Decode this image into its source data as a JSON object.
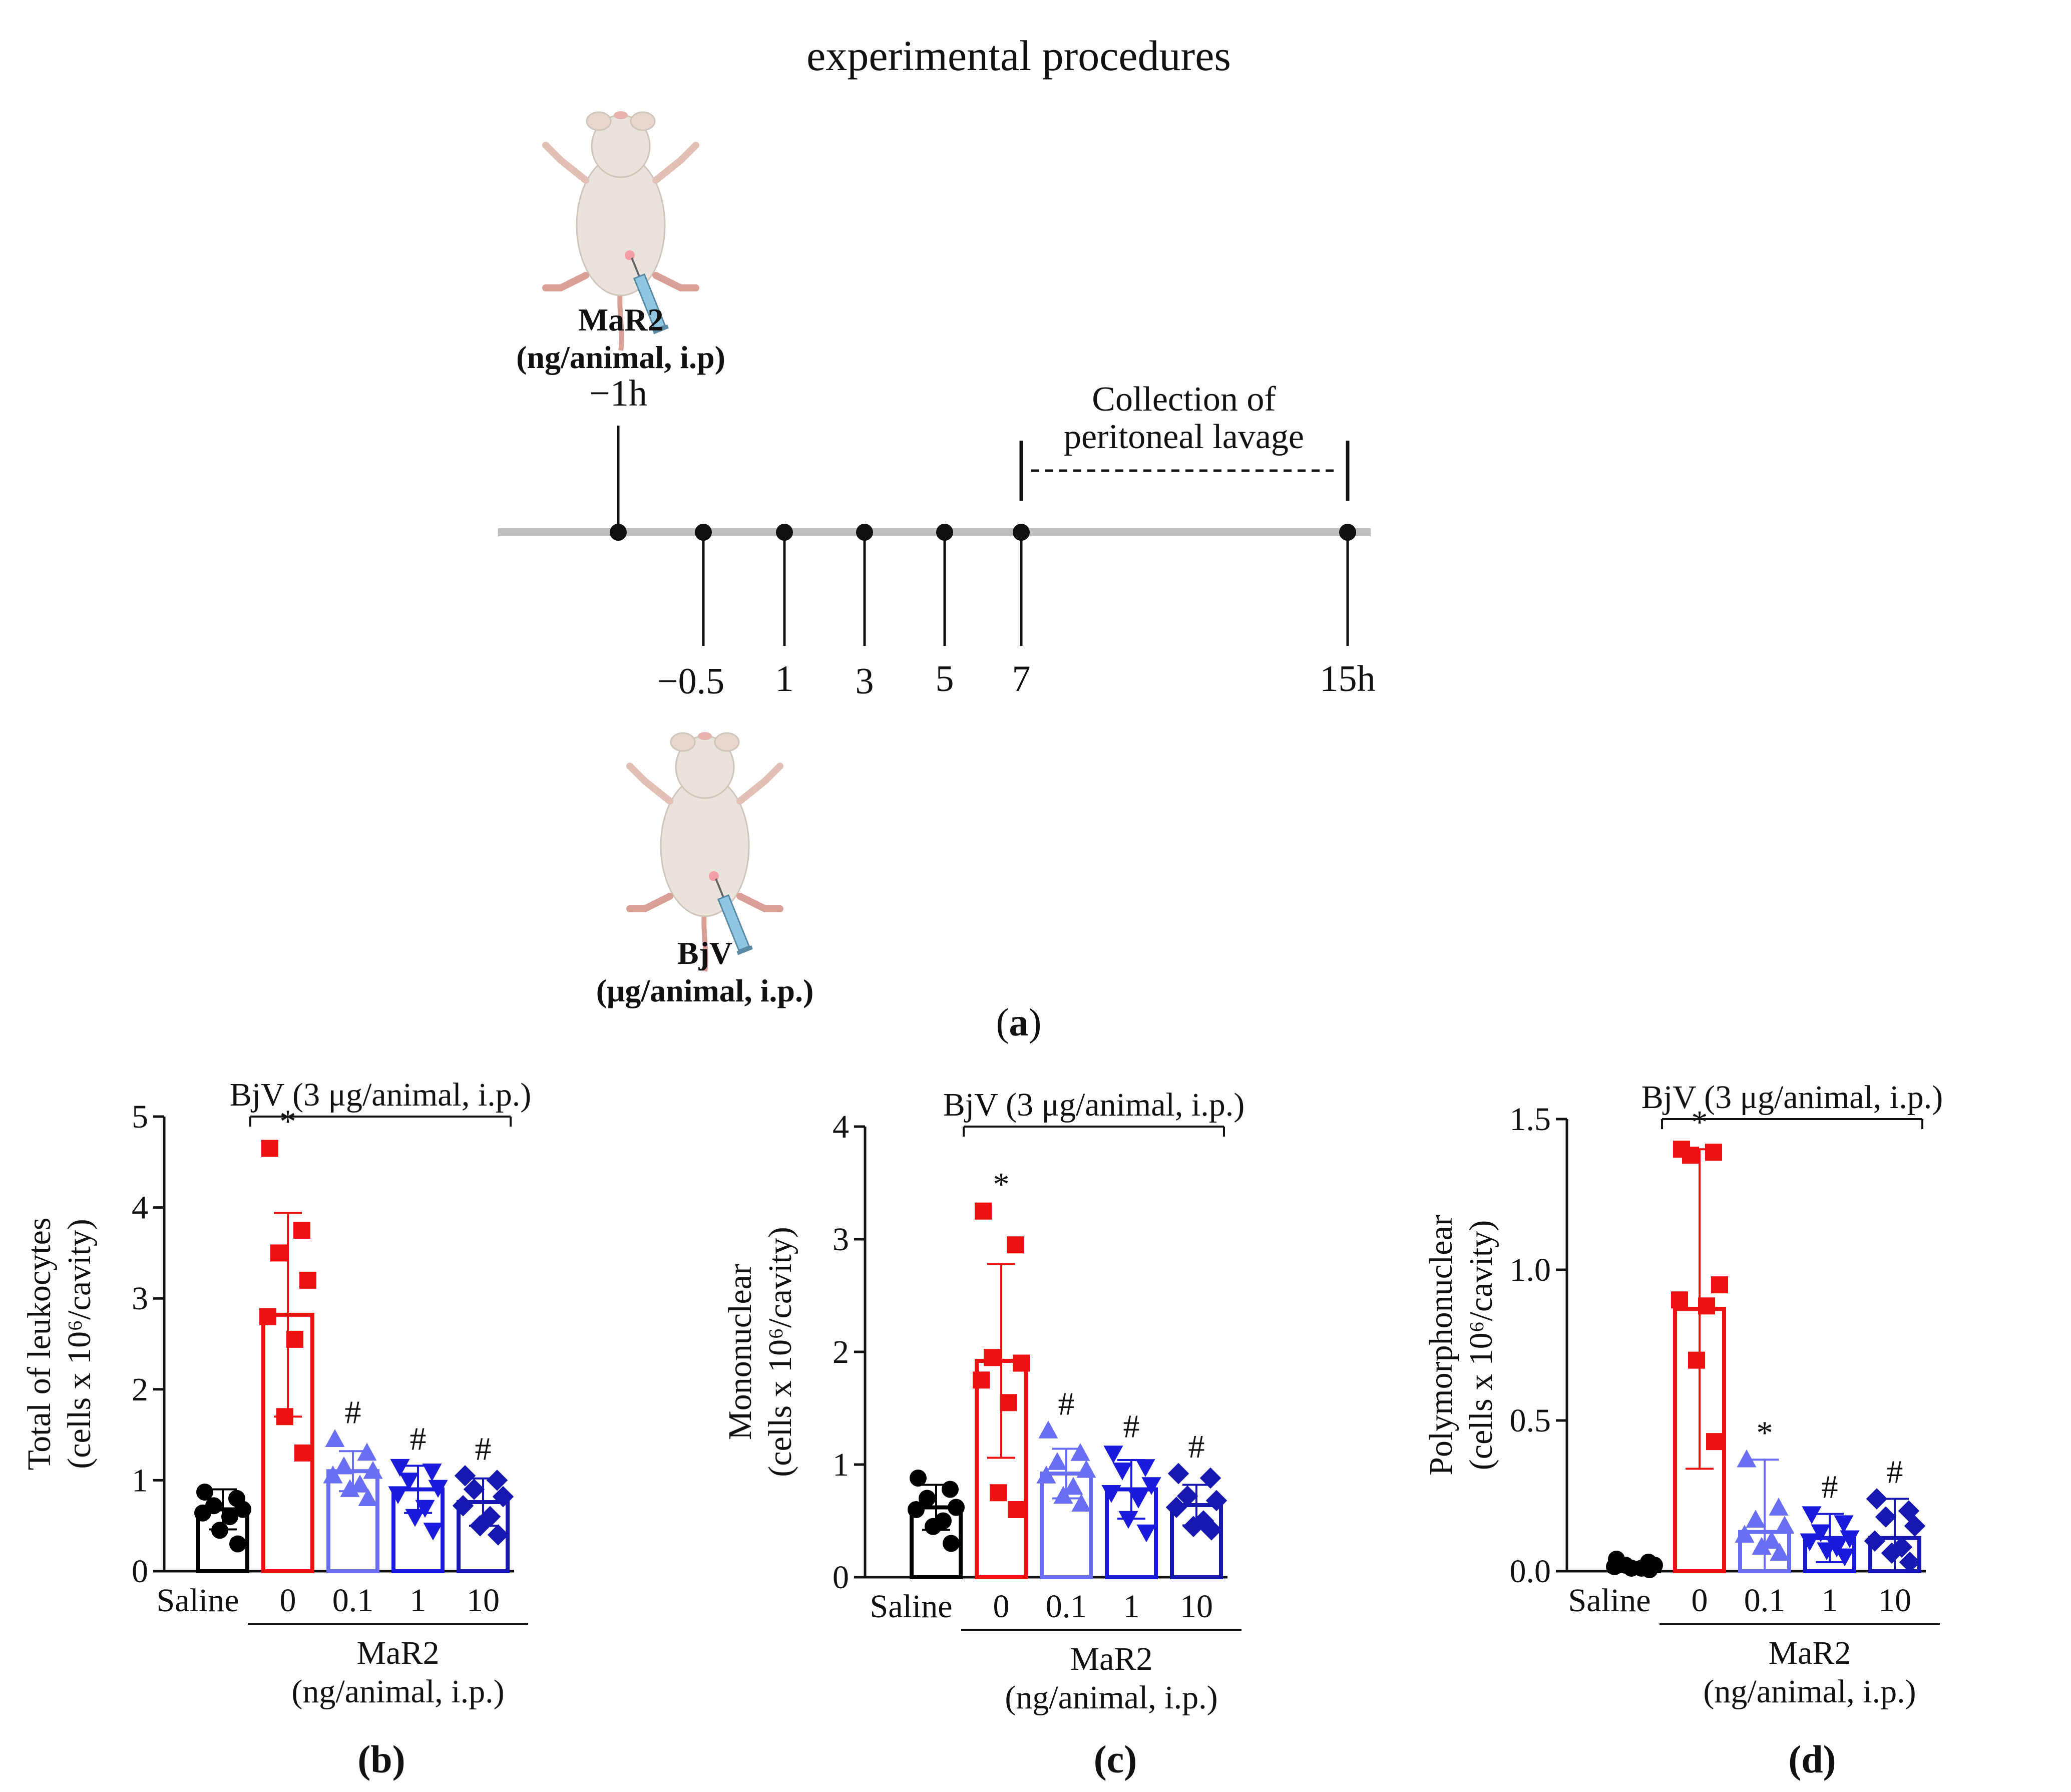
{
  "panel_a": {
    "title": "experimental procedures",
    "mar2_label_line1": "MaR2",
    "mar2_label_line2": "(ng/animal, i.p)",
    "mar2_time": "−1h",
    "bjv_label_line1": "BjV",
    "bjv_label_line2": "(μg/animal, i.p.)",
    "collection_line1": "Collection of",
    "collection_line2": "peritoneal lavage",
    "timeline_ticks": [
      "−0.5",
      "1",
      "3",
      "5",
      "7",
      "15h"
    ],
    "panel_label": "(a)"
  },
  "colors": {
    "saline": "#000000",
    "dose0": "#ee1111",
    "dose01": "#6a6ef2",
    "dose1": "#1a1adc",
    "dose10": "#1616b0",
    "timeline": "#c0c0c0",
    "mouse_body": "#e9e3db",
    "syringe": "#8fc7e0"
  },
  "chart_data": [
    {
      "type": "bar",
      "panel_label": "(b)",
      "ylabel_line1": "Total of leukocytes",
      "ylabel_line2": "(cells x 10⁶/cavity)",
      "ylim": [
        0,
        5
      ],
      "yticks": [
        "0",
        "1",
        "2",
        "3",
        "4",
        "5"
      ],
      "bracket_label": "BjV (3 μg/animal, i.p.)",
      "categories": [
        "Saline",
        "0",
        "0.1",
        "1",
        "10"
      ],
      "xgroup_line1": "MaR2",
      "xgroup_line2": "(ng/animal, i.p.)",
      "means": [
        0.68,
        2.82,
        1.1,
        0.9,
        0.76
      ],
      "errors": [
        0.22,
        1.12,
        0.22,
        0.26,
        0.26
      ],
      "points": [
        [
          0.87,
          0.8,
          0.72,
          0.68,
          0.64,
          0.6,
          0.45,
          0.3
        ],
        [
          4.65,
          3.75,
          3.5,
          3.2,
          2.8,
          2.55,
          1.7,
          1.3
        ],
        [
          1.45,
          1.3,
          1.15,
          1.1,
          1.05,
          0.95,
          0.9,
          0.8
        ],
        [
          1.15,
          1.1,
          1.0,
          0.92,
          0.85,
          0.7,
          0.6,
          0.45
        ],
        [
          1.05,
          1.0,
          0.9,
          0.82,
          0.72,
          0.6,
          0.5,
          0.4
        ]
      ],
      "annotations": [
        "",
        "*",
        "#",
        "#",
        "#"
      ]
    },
    {
      "type": "bar",
      "panel_label": "(c)",
      "ylabel_line1": "Mononuclear",
      "ylabel_line2": "(cells x 10⁶/cavity)",
      "ylim": [
        0,
        4
      ],
      "yticks": [
        "0",
        "1",
        "2",
        "3",
        "4"
      ],
      "bracket_label": "BjV (3 μg/animal, i.p.)",
      "categories": [
        "Saline",
        "0",
        "0.1",
        "1",
        "10"
      ],
      "xgroup_line1": "MaR2",
      "xgroup_line2": "(ng/animal, i.p.)",
      "means": [
        0.62,
        1.92,
        0.92,
        0.78,
        0.64
      ],
      "errors": [
        0.2,
        0.86,
        0.22,
        0.26,
        0.18
      ],
      "points": [
        [
          0.88,
          0.78,
          0.7,
          0.62,
          0.6,
          0.5,
          0.45,
          0.3
        ],
        [
          3.25,
          2.95,
          1.95,
          1.9,
          1.75,
          1.55,
          0.75,
          0.6
        ],
        [
          1.3,
          1.1,
          1.02,
          0.95,
          0.9,
          0.8,
          0.72,
          0.65
        ],
        [
          1.1,
          0.98,
          0.95,
          0.82,
          0.75,
          0.7,
          0.52,
          0.4
        ],
        [
          0.92,
          0.88,
          0.72,
          0.68,
          0.62,
          0.5,
          0.45,
          0.42
        ]
      ],
      "annotations": [
        "",
        "*",
        "#",
        "#",
        "#"
      ]
    },
    {
      "type": "bar",
      "panel_label": "(d)",
      "ylabel_line1": "Polymorphonuclear",
      "ylabel_line2": "(cells x 10⁶/cavity)",
      "ylim": [
        0,
        1.5
      ],
      "yticks": [
        "0.0",
        "0.5",
        "1.0",
        "1.5"
      ],
      "bracket_label": "BjV (3 μg/animal, i.p.)",
      "categories": [
        "Saline",
        "0",
        "0.1",
        "1",
        "10"
      ],
      "xgroup_line1": "MaR2",
      "xgroup_line2": "(ng/animal, i.p.)",
      "means": [
        0.02,
        0.87,
        0.13,
        0.11,
        0.11
      ],
      "errors": [
        0.01,
        0.53,
        0.24,
        0.08,
        0.13
      ],
      "points": [
        [
          0.04,
          0.03,
          0.02,
          0.02,
          0.015,
          0.01,
          0.01,
          0.005
        ],
        [
          1.4,
          1.39,
          1.38,
          0.95,
          0.9,
          0.88,
          0.7,
          0.43
        ],
        [
          0.37,
          0.21,
          0.17,
          0.15,
          0.12,
          0.1,
          0.08,
          0.06
        ],
        [
          0.19,
          0.16,
          0.13,
          0.11,
          0.1,
          0.08,
          0.07,
          0.05
        ],
        [
          0.24,
          0.2,
          0.18,
          0.15,
          0.1,
          0.08,
          0.06,
          0.03
        ]
      ],
      "annotations": [
        "",
        "*",
        "*",
        "#",
        "#"
      ]
    }
  ]
}
